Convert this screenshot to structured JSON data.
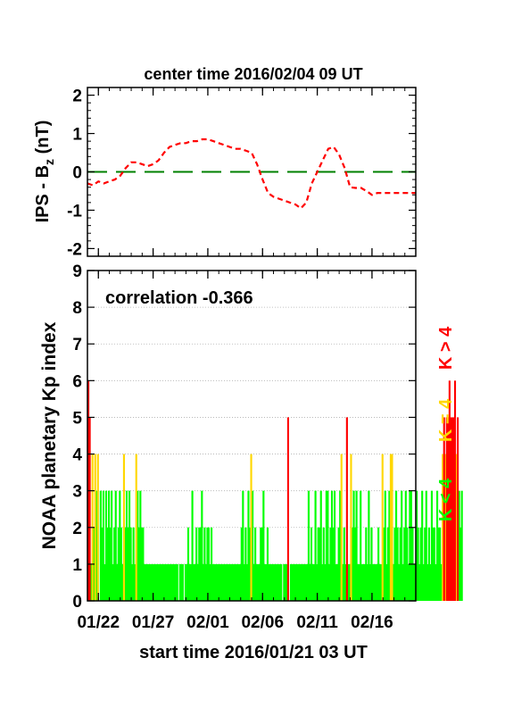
{
  "chart_data": [
    {
      "type": "line",
      "title": "center time 2016/02/04 09 UT",
      "ylabel_main": "IPS - B",
      "ylabel_sub": "z",
      "ylabel_unit": " (nT)",
      "ylim": [
        -2.2,
        2.2
      ],
      "yticks": [
        "-2",
        "-1",
        "0",
        "1",
        "2"
      ],
      "ytick_values": [
        -2,
        -1,
        0,
        1,
        2
      ],
      "xlim_days": [
        0,
        30
      ],
      "reference_line": {
        "y": 0,
        "color": "#008000",
        "style": "dashed"
      },
      "series": [
        {
          "color": "#ff0000",
          "style": "dashed",
          "x": [
            0,
            0.5,
            1,
            1.5,
            2,
            2.5,
            3,
            3.5,
            4,
            4.5,
            5,
            5.5,
            6,
            6.5,
            7,
            7.5,
            8,
            8.5,
            9,
            9.5,
            10,
            10.5,
            11,
            11.5,
            12,
            12.5,
            13,
            13.5,
            14,
            14.5,
            15,
            15.5,
            16,
            16.5,
            17,
            17.5,
            18,
            18.5,
            19,
            19.5,
            20,
            20.5,
            21,
            21.5,
            22,
            22.5,
            23,
            23.5,
            24,
            24.5,
            25,
            25.5,
            26,
            26.5,
            27,
            27.5,
            28,
            28.5,
            29,
            29.5,
            30
          ],
          "y": [
            -0.3,
            -0.35,
            -0.25,
            -0.3,
            -0.25,
            -0.2,
            -0.1,
            0.1,
            0.25,
            0.25,
            0.2,
            0.15,
            0.2,
            0.3,
            0.5,
            0.65,
            0.7,
            0.75,
            0.75,
            0.8,
            0.8,
            0.85,
            0.85,
            0.8,
            0.75,
            0.7,
            0.65,
            0.6,
            0.6,
            0.55,
            0.5,
            0.2,
            -0.2,
            -0.55,
            -0.65,
            -0.7,
            -0.75,
            -0.8,
            -0.85,
            -0.95,
            -0.8,
            -0.3,
            0,
            0.3,
            0.6,
            0.65,
            0.45,
            0.1,
            -0.4,
            -0.42,
            -0.42,
            -0.5,
            -0.6,
            -0.55,
            -0.55,
            -0.55,
            -0.55,
            -0.55,
            -0.55,
            -0.55,
            -0.55
          ]
        }
      ]
    },
    {
      "type": "bar",
      "ylabel": "NOAA planetary Kp index",
      "annotation": "correlation -0.366",
      "ylim": [
        0,
        9
      ],
      "yticks": [
        "0",
        "1",
        "2",
        "3",
        "4",
        "5",
        "6",
        "7",
        "8",
        "9"
      ],
      "ytick_values": [
        0,
        1,
        2,
        3,
        4,
        5,
        6,
        7,
        8,
        9
      ],
      "grid": true,
      "xlabel": "start time 2016/01/21 03 UT",
      "xticks": [
        "01/22",
        "01/27",
        "02/01",
        "02/06",
        "02/11",
        "02/16"
      ],
      "xtick_days": [
        1,
        6,
        11,
        16,
        21,
        26
      ],
      "xlim_days": [
        0,
        30
      ],
      "legend": [
        {
          "label": "K < 4",
          "color": "#00ff00"
        },
        {
          "label": "K = 4",
          "color": "#ffd700"
        },
        {
          "label": "K > 4",
          "color": "#ff0000"
        }
      ],
      "bar_step_days": 0.125,
      "kp_values": [
        6,
        5,
        1,
        4,
        2,
        4,
        3,
        4,
        0,
        3,
        2,
        3,
        1,
        3,
        2,
        3,
        2,
        3,
        1,
        2,
        3,
        1,
        2,
        3,
        2,
        1,
        4,
        2,
        3,
        2,
        3,
        2,
        1,
        2,
        1,
        4,
        3,
        2,
        3,
        2,
        2,
        1,
        1,
        1,
        1,
        1,
        1,
        1,
        1,
        1,
        1,
        1,
        1,
        1,
        1,
        1,
        1,
        1,
        1,
        1,
        1,
        1,
        1,
        1,
        1,
        1,
        0,
        1,
        1,
        1,
        0,
        1,
        1,
        2,
        1,
        1,
        3,
        1,
        1,
        2,
        1,
        2,
        2,
        3,
        1,
        2,
        1,
        2,
        2,
        1,
        2,
        1,
        1,
        1,
        1,
        1,
        1,
        1,
        1,
        1,
        1,
        1,
        1,
        1,
        1,
        1,
        1,
        1,
        1,
        1,
        1,
        1,
        2,
        3,
        1,
        2,
        1,
        3,
        2,
        4,
        3,
        1,
        2,
        1,
        1,
        1,
        2,
        2,
        3,
        1,
        1,
        2,
        1,
        1,
        1,
        1,
        1,
        1,
        1,
        1,
        1,
        1,
        0,
        1,
        1,
        1,
        5,
        0,
        1,
        1,
        1,
        1,
        1,
        1,
        1,
        1,
        1,
        1,
        1,
        1,
        1,
        3,
        1,
        2,
        1,
        1,
        3,
        1,
        2,
        2,
        3,
        1,
        2,
        1,
        3,
        3,
        1,
        2,
        3,
        2,
        3,
        1,
        1,
        2,
        3,
        4,
        1,
        2,
        1,
        5,
        1,
        1,
        4,
        2,
        3,
        2,
        3,
        1,
        1,
        3,
        1,
        1,
        1,
        2,
        1,
        3,
        1,
        2,
        1,
        1,
        1,
        1,
        2,
        1,
        1,
        4,
        2,
        3,
        1,
        2,
        3,
        4,
        4,
        1,
        2,
        3,
        2,
        1,
        2,
        3,
        1,
        2,
        3,
        2,
        1,
        3,
        3,
        2,
        1,
        1,
        3,
        2,
        1,
        2,
        3,
        1,
        2,
        3,
        1,
        2,
        1,
        3,
        2,
        2,
        1,
        3,
        2,
        2,
        1,
        4,
        5,
        4,
        5,
        5,
        6,
        5,
        5,
        5,
        6,
        4,
        5,
        3,
        2,
        3
      ]
    }
  ]
}
